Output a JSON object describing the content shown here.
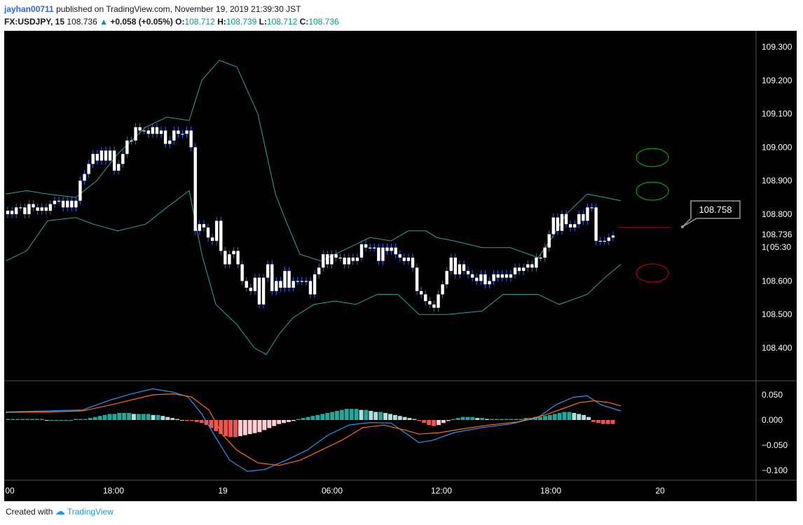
{
  "header": {
    "author": "jayhan00711",
    "published": "published on TradingView.com, November 19, 2019 21:39:30 JST",
    "symbol": "FX:USDJPY, 15",
    "last": "108.736",
    "change_arrow": "▲",
    "change": "+0.058 (+0.05%)",
    "o_label": "O:",
    "o": "108.712",
    "h_label": "H:",
    "h": "108.739",
    "l_label": "L:",
    "l": "108.712",
    "c_label": "C:",
    "c": "108.736"
  },
  "footer": {
    "created": "Created with",
    "brand": "TradingView"
  },
  "colors": {
    "background": "#000000",
    "bull": "#ffffff",
    "bear": "#ffffff",
    "wick": "#2962ff",
    "band": "#26a69a",
    "macd": "#2196f3",
    "signal": "#ff6d00",
    "hist_up_strong": "#26a69a",
    "hist_up_weak": "#b2dfdb",
    "hist_down_strong": "#ef5350",
    "hist_down_weak": "#ffcdd2",
    "ellipse_green": "#00c000",
    "ellipse_red": "#d00000",
    "target_line": "#d00000"
  },
  "chart_data": {
    "type": "candlestick",
    "symbol": "FX:USDJPY",
    "interval": "15",
    "price_axis": {
      "ticks": [
        "109.300",
        "109.200",
        "109.100",
        "109.000",
        "108.900",
        "108.800",
        "108.600",
        "108.500",
        "108.400"
      ],
      "ylim": [
        108.35,
        109.34
      ]
    },
    "time_axis": {
      "ticks": [
        "00",
        "18:00",
        "19",
        "06:00",
        "12:00",
        "18:00",
        "20"
      ]
    },
    "last_price_label": "108.736",
    "countdown_label": "05:30",
    "countdown_prefix": "1(",
    "callout_label": "108.758",
    "target_line_price": 108.758,
    "close_series": [
      108.81,
      108.8,
      108.82,
      108.82,
      108.8,
      108.83,
      108.82,
      108.81,
      108.82,
      108.81,
      108.83,
      108.84,
      108.84,
      108.82,
      108.84,
      108.82,
      108.84,
      108.9,
      108.92,
      108.95,
      108.98,
      108.96,
      108.99,
      108.96,
      108.99,
      108.93,
      108.95,
      108.98,
      109.02,
      109.02,
      109.06,
      109.05,
      109.05,
      109.04,
      109.06,
      109.04,
      109.05,
      109.01,
      109.02,
      109.05,
      109.04,
      109.04,
      109.05,
      109.0,
      108.75,
      108.77,
      108.76,
      108.73,
      108.72,
      108.78,
      108.69,
      108.65,
      108.68,
      108.69,
      108.65,
      108.6,
      108.58,
      108.57,
      108.61,
      108.53,
      108.61,
      108.65,
      108.57,
      108.6,
      108.58,
      108.63,
      108.58,
      108.6,
      108.6,
      108.6,
      108.6,
      108.56,
      108.62,
      108.64,
      108.68,
      108.65,
      108.68,
      108.67,
      108.67,
      108.65,
      108.67,
      108.66,
      108.67,
      108.71,
      108.7,
      108.7,
      108.7,
      108.66,
      108.7,
      108.69,
      108.7,
      108.68,
      108.67,
      108.66,
      108.67,
      108.64,
      108.57,
      108.56,
      108.54,
      108.53,
      108.52,
      108.56,
      108.59,
      108.63,
      108.67,
      108.62,
      108.65,
      108.63,
      108.62,
      108.61,
      108.6,
      108.62,
      108.59,
      108.6,
      108.62,
      108.61,
      108.62,
      108.61,
      108.62,
      108.64,
      108.63,
      108.64,
      108.65,
      108.64,
      108.67,
      108.67,
      108.7,
      108.74,
      108.79,
      108.75,
      108.8,
      108.77,
      108.76,
      108.77,
      108.8,
      108.78,
      108.82,
      108.82,
      108.72,
      108.72,
      108.72,
      108.73,
      108.736
    ],
    "bollinger": {
      "upper": [
        [
          0,
          108.86
        ],
        [
          30,
          108.87
        ],
        [
          60,
          108.86
        ],
        [
          100,
          108.85
        ],
        [
          130,
          108.9
        ],
        [
          160,
          108.98
        ],
        [
          200,
          109.06
        ],
        [
          230,
          109.09
        ],
        [
          262,
          109.08
        ],
        [
          280,
          109.2
        ],
        [
          305,
          109.26
        ],
        [
          330,
          109.24
        ],
        [
          360,
          109.1
        ],
        [
          385,
          108.86
        ],
        [
          400,
          108.78
        ],
        [
          420,
          108.68
        ],
        [
          450,
          108.66
        ],
        [
          490,
          108.7
        ],
        [
          520,
          108.73
        ],
        [
          550,
          108.72
        ],
        [
          575,
          108.75
        ],
        [
          600,
          108.75
        ],
        [
          615,
          108.73
        ],
        [
          640,
          108.72
        ],
        [
          680,
          108.7
        ],
        [
          720,
          108.7
        ],
        [
          760,
          108.67
        ],
        [
          780,
          108.73
        ],
        [
          800,
          108.8
        ],
        [
          830,
          108.86
        ],
        [
          855,
          108.85
        ],
        [
          878,
          108.84
        ]
      ],
      "lower": [
        [
          0,
          108.66
        ],
        [
          30,
          108.69
        ],
        [
          60,
          108.78
        ],
        [
          100,
          108.79
        ],
        [
          125,
          108.77
        ],
        [
          160,
          108.75
        ],
        [
          200,
          108.77
        ],
        [
          230,
          108.82
        ],
        [
          262,
          108.87
        ],
        [
          280,
          108.68
        ],
        [
          300,
          108.53
        ],
        [
          330,
          108.47
        ],
        [
          355,
          108.4
        ],
        [
          372,
          108.38
        ],
        [
          390,
          108.44
        ],
        [
          410,
          108.49
        ],
        [
          440,
          108.53
        ],
        [
          470,
          108.54
        ],
        [
          500,
          108.53
        ],
        [
          530,
          108.56
        ],
        [
          560,
          108.56
        ],
        [
          590,
          108.5
        ],
        [
          630,
          108.5
        ],
        [
          680,
          108.51
        ],
        [
          710,
          108.56
        ],
        [
          760,
          108.56
        ],
        [
          790,
          108.53
        ],
        [
          830,
          108.56
        ],
        [
          855,
          108.61
        ],
        [
          878,
          108.65
        ]
      ]
    },
    "macd_axis": {
      "ticks": [
        "0.050",
        "0.000",
        "−0.050",
        "−0.100"
      ],
      "ylim": [
        -0.12,
        0.075
      ]
    },
    "macd_line": [
      [
        0,
        0.016
      ],
      [
        60,
        0.018
      ],
      [
        110,
        0.02
      ],
      [
        150,
        0.04
      ],
      [
        180,
        0.052
      ],
      [
        210,
        0.062
      ],
      [
        240,
        0.055
      ],
      [
        260,
        0.046
      ],
      [
        280,
        0.012
      ],
      [
        300,
        -0.035
      ],
      [
        320,
        -0.08
      ],
      [
        345,
        -0.102
      ],
      [
        370,
        -0.098
      ],
      [
        400,
        -0.08
      ],
      [
        430,
        -0.06
      ],
      [
        460,
        -0.03
      ],
      [
        490,
        -0.01
      ],
      [
        520,
        -0.005
      ],
      [
        550,
        -0.006
      ],
      [
        575,
        -0.03
      ],
      [
        590,
        -0.045
      ],
      [
        610,
        -0.04
      ],
      [
        640,
        -0.025
      ],
      [
        680,
        -0.015
      ],
      [
        720,
        -0.008
      ],
      [
        760,
        0.005
      ],
      [
        785,
        0.03
      ],
      [
        810,
        0.045
      ],
      [
        830,
        0.048
      ],
      [
        850,
        0.03
      ],
      [
        878,
        0.018
      ]
    ],
    "signal_line": [
      [
        0,
        0.015
      ],
      [
        60,
        0.016
      ],
      [
        110,
        0.018
      ],
      [
        150,
        0.03
      ],
      [
        180,
        0.04
      ],
      [
        210,
        0.05
      ],
      [
        240,
        0.052
      ],
      [
        265,
        0.046
      ],
      [
        290,
        0.02
      ],
      [
        310,
        -0.03
      ],
      [
        330,
        -0.06
      ],
      [
        360,
        -0.085
      ],
      [
        390,
        -0.09
      ],
      [
        420,
        -0.08
      ],
      [
        450,
        -0.06
      ],
      [
        480,
        -0.04
      ],
      [
        510,
        -0.015
      ],
      [
        540,
        -0.01
      ],
      [
        570,
        -0.02
      ],
      [
        590,
        -0.028
      ],
      [
        620,
        -0.025
      ],
      [
        650,
        -0.018
      ],
      [
        690,
        -0.01
      ],
      [
        730,
        -0.004
      ],
      [
        770,
        0.01
      ],
      [
        800,
        0.025
      ],
      [
        820,
        0.035
      ],
      [
        840,
        0.038
      ],
      [
        860,
        0.035
      ],
      [
        878,
        0.028
      ]
    ],
    "histogram": [
      0.002,
      0.002,
      0.002,
      0.002,
      0.002,
      0.002,
      0.002,
      0.002,
      0.0,
      0.0,
      0.0,
      0.0,
      0.0,
      0.0,
      0.002,
      0.002,
      0.002,
      0.004,
      0.006,
      0.008,
      0.01,
      0.012,
      0.012,
      0.014,
      0.014,
      0.014,
      0.012,
      0.012,
      0.012,
      0.012,
      0.01,
      0.01,
      0.008,
      0.006,
      0.004,
      0.002,
      0.0,
      -0.002,
      -0.002,
      -0.004,
      -0.006,
      -0.01,
      -0.016,
      -0.022,
      -0.028,
      -0.032,
      -0.034,
      -0.034,
      -0.032,
      -0.03,
      -0.028,
      -0.026,
      -0.024,
      -0.02,
      -0.016,
      -0.012,
      -0.008,
      -0.006,
      -0.004,
      -0.002,
      0.002,
      0.004,
      0.006,
      0.008,
      0.01,
      0.012,
      0.014,
      0.016,
      0.018,
      0.02,
      0.022,
      0.022,
      0.022,
      0.02,
      0.02,
      0.018,
      0.016,
      0.016,
      0.014,
      0.012,
      0.01,
      0.008,
      0.006,
      0.004,
      0.002,
      -0.002,
      -0.006,
      -0.01,
      -0.012,
      -0.01,
      -0.006,
      -0.002,
      0.002,
      0.004,
      0.006,
      0.006,
      0.006,
      0.004,
      0.004,
      0.002,
      0.002,
      0.002,
      0.002,
      0.002,
      0.002,
      0.002,
      0.002,
      0.004,
      0.004,
      0.006,
      0.006,
      0.008,
      0.01,
      0.012,
      0.014,
      0.016,
      0.016,
      0.014,
      0.012,
      0.01,
      0.006,
      -0.004,
      -0.006,
      -0.008,
      -0.008,
      -0.008
    ]
  }
}
